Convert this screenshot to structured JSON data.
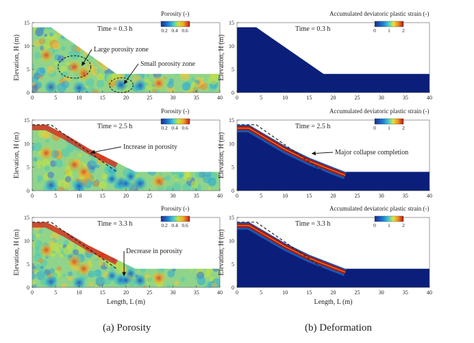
{
  "chart_data": [
    {
      "type": "heatmap",
      "panel": "porosity",
      "time_label": "Time = 0.3 h",
      "colorbar_title": "Porosity (-)",
      "colorbar_ticks": [
        "0.2",
        "0.4",
        "0.6"
      ],
      "colorbar_range": [
        0.15,
        0.7
      ],
      "ylabel": "Elevation, H (m)",
      "xlabel": "",
      "xlim": [
        0,
        40
      ],
      "ylim": [
        0,
        15
      ],
      "xticks": [
        0,
        5,
        10,
        15,
        20,
        25,
        30,
        35,
        40
      ],
      "yticks": [
        0,
        5,
        10,
        15
      ],
      "slope_profile": [
        [
          0,
          14
        ],
        [
          4,
          14
        ],
        [
          18,
          4
        ],
        [
          40,
          4
        ]
      ],
      "annotations": [
        {
          "text": "Large porosity zone",
          "target": [
            10,
            5.5
          ],
          "ellipse": {
            "cx": 9,
            "cy": 5.5,
            "rx": 3.5,
            "ry": 2.4
          }
        },
        {
          "text": "Small porosity zone",
          "target": [
            19,
            1.6
          ],
          "ellipse": {
            "cx": 19,
            "cy": 1.6,
            "rx": 2.5,
            "ry": 1.6
          }
        }
      ]
    },
    {
      "type": "heatmap",
      "panel": "deformation",
      "time_label": "Time = 0.3 h",
      "colorbar_title": "Accumulated deviatoric plastic strain (-)",
      "colorbar_ticks": [
        "0",
        "1",
        "2"
      ],
      "colorbar_range": [
        0,
        2
      ],
      "ylabel": "Elevation, H (m)",
      "xlabel": "",
      "xlim": [
        0,
        40
      ],
      "ylim": [
        0,
        15
      ],
      "xticks": [
        0,
        5,
        10,
        15,
        20,
        25,
        30,
        35,
        40
      ],
      "yticks": [
        0,
        5,
        10,
        15
      ],
      "slope_profile": [
        [
          0,
          14
        ],
        [
          4,
          14
        ],
        [
          18,
          4
        ],
        [
          40,
          4
        ]
      ],
      "annotations": []
    },
    {
      "type": "heatmap",
      "panel": "porosity",
      "time_label": "Time = 2.5 h",
      "colorbar_title": "Porosity (-)",
      "colorbar_ticks": [
        "0.2",
        "0.4",
        "0.6"
      ],
      "colorbar_range": [
        0.15,
        0.7
      ],
      "ylabel": "Elevation, H (m)",
      "xlabel": "",
      "xlim": [
        0,
        40
      ],
      "ylim": [
        0,
        15
      ],
      "xticks": [
        0,
        5,
        10,
        15,
        20,
        25,
        30,
        35,
        40
      ],
      "yticks": [
        0,
        5,
        10,
        15
      ],
      "slope_profile": [
        [
          0,
          14
        ],
        [
          3,
          14
        ],
        [
          7,
          12
        ],
        [
          12,
          9
        ],
        [
          18,
          6
        ],
        [
          22,
          4
        ],
        [
          40,
          4
        ]
      ],
      "initial_profile": [
        [
          0,
          14
        ],
        [
          4,
          14
        ],
        [
          18,
          4
        ]
      ],
      "annotations": [
        {
          "text": "Increase in porosity",
          "target": [
            12,
            7.8
          ]
        }
      ]
    },
    {
      "type": "heatmap",
      "panel": "deformation",
      "time_label": "Time = 2.5 h",
      "colorbar_title": "Accumulated deviatoric plastic strain (-)",
      "colorbar_ticks": [
        "0",
        "1",
        "2"
      ],
      "colorbar_range": [
        0,
        2
      ],
      "ylabel": "Elevation, H (m)",
      "xlabel": "",
      "xlim": [
        0,
        40
      ],
      "ylim": [
        0,
        15
      ],
      "xticks": [
        0,
        5,
        10,
        15,
        20,
        25,
        30,
        35,
        40
      ],
      "yticks": [
        0,
        5,
        10,
        15
      ],
      "slope_profile": [
        [
          0,
          14
        ],
        [
          2.5,
          14
        ],
        [
          5,
          12.5
        ],
        [
          10,
          9.5
        ],
        [
          15,
          7
        ],
        [
          20,
          5
        ],
        [
          22.5,
          4
        ],
        [
          40,
          4
        ]
      ],
      "initial_profile": [
        [
          0,
          14
        ],
        [
          4,
          14
        ],
        [
          18,
          4
        ]
      ],
      "annotations": [
        {
          "text": "Major collapse completion",
          "target": [
            15,
            7.6
          ]
        }
      ]
    },
    {
      "type": "heatmap",
      "panel": "porosity",
      "time_label": "Time = 3.3 h",
      "colorbar_title": "Porosity (-)",
      "colorbar_ticks": [
        "0.2",
        "0.4",
        "0.6"
      ],
      "colorbar_range": [
        0.15,
        0.7
      ],
      "ylabel": "Elevation, H (m)",
      "xlabel": "Length, L (m)",
      "xlim": [
        0,
        40
      ],
      "ylim": [
        0,
        15
      ],
      "xticks": [
        0,
        5,
        10,
        15,
        20,
        25,
        30,
        35,
        40
      ],
      "yticks": [
        0,
        5,
        10,
        15
      ],
      "slope_profile": [
        [
          0,
          14
        ],
        [
          3,
          14
        ],
        [
          7,
          12
        ],
        [
          12,
          9
        ],
        [
          18,
          6
        ],
        [
          22,
          4
        ],
        [
          40,
          4
        ]
      ],
      "initial_profile": [
        [
          0,
          14
        ],
        [
          4,
          14
        ],
        [
          18,
          4
        ]
      ],
      "annotations": [
        {
          "text": "Decrease in porosity",
          "target": [
            19,
            2.2
          ]
        }
      ]
    },
    {
      "type": "heatmap",
      "panel": "deformation",
      "time_label": "Time = 3.3 h",
      "colorbar_title": "Accumulated deviatoric plastic strain (-)",
      "colorbar_ticks": [
        "0",
        "1",
        "2"
      ],
      "colorbar_range": [
        0,
        2
      ],
      "ylabel": "Elevation, H (m)",
      "xlabel": "Length, L (m)",
      "xlim": [
        0,
        40
      ],
      "ylim": [
        0,
        15
      ],
      "xticks": [
        0,
        5,
        10,
        15,
        20,
        25,
        30,
        35,
        40
      ],
      "yticks": [
        0,
        5,
        10,
        15
      ],
      "slope_profile": [
        [
          0,
          14
        ],
        [
          2.5,
          14
        ],
        [
          5,
          12.5
        ],
        [
          10,
          9.5
        ],
        [
          15,
          7
        ],
        [
          20,
          5
        ],
        [
          22.5,
          4
        ],
        [
          40,
          4
        ]
      ],
      "initial_profile": [
        [
          0,
          14
        ],
        [
          4,
          14
        ],
        [
          18,
          4
        ]
      ],
      "annotations": []
    }
  ],
  "captions": {
    "left": "(a) Porosity",
    "right": "(b) Deformation"
  },
  "colors": {
    "deform_bg": "#0b1f7a",
    "shear_band": "#b01414",
    "text": "#222222",
    "dash": "#222222"
  }
}
